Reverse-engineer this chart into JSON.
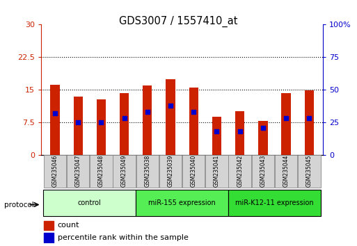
{
  "title": "GDS3007 / 1557410_at",
  "samples": [
    "GSM235046",
    "GSM235047",
    "GSM235048",
    "GSM235049",
    "GSM235038",
    "GSM235039",
    "GSM235040",
    "GSM235041",
    "GSM235042",
    "GSM235043",
    "GSM235044",
    "GSM235045"
  ],
  "count_values": [
    16.2,
    13.5,
    12.8,
    14.2,
    16.0,
    17.5,
    15.5,
    8.8,
    10.0,
    7.8,
    14.2,
    14.8
  ],
  "percentile_values": [
    32.0,
    25.0,
    25.0,
    28.0,
    33.0,
    38.0,
    33.0,
    18.0,
    18.0,
    21.0,
    28.0,
    28.0
  ],
  "ylim_left": [
    0,
    30
  ],
  "ylim_right": [
    0,
    100
  ],
  "yticks_left": [
    0,
    7.5,
    15,
    22.5,
    30
  ],
  "ytick_labels_left": [
    "0",
    "7.5",
    "15",
    "22.5",
    "30"
  ],
  "yticks_right": [
    0,
    25,
    50,
    75,
    100
  ],
  "ytick_labels_right": [
    "0",
    "25",
    "50",
    "75",
    "100%"
  ],
  "bar_color": "#cc2200",
  "dot_color": "#0000cc",
  "group_info": [
    {
      "label": "control",
      "start": 0,
      "end": 3,
      "color": "#ccffcc"
    },
    {
      "label": "miR-155 expression",
      "start": 4,
      "end": 7,
      "color": "#55ee55"
    },
    {
      "label": "miR-K12-11 expression",
      "start": 8,
      "end": 11,
      "color": "#33dd33"
    }
  ],
  "protocol_label": "protocol",
  "legend_count_label": "count",
  "legend_pct_label": "percentile rank within the sample",
  "tick_color_left": "#cc2200",
  "tick_color_right": "#0000cc",
  "bar_width": 0.4,
  "dot_size": 24,
  "grid_yticks": [
    7.5,
    15,
    22.5
  ]
}
